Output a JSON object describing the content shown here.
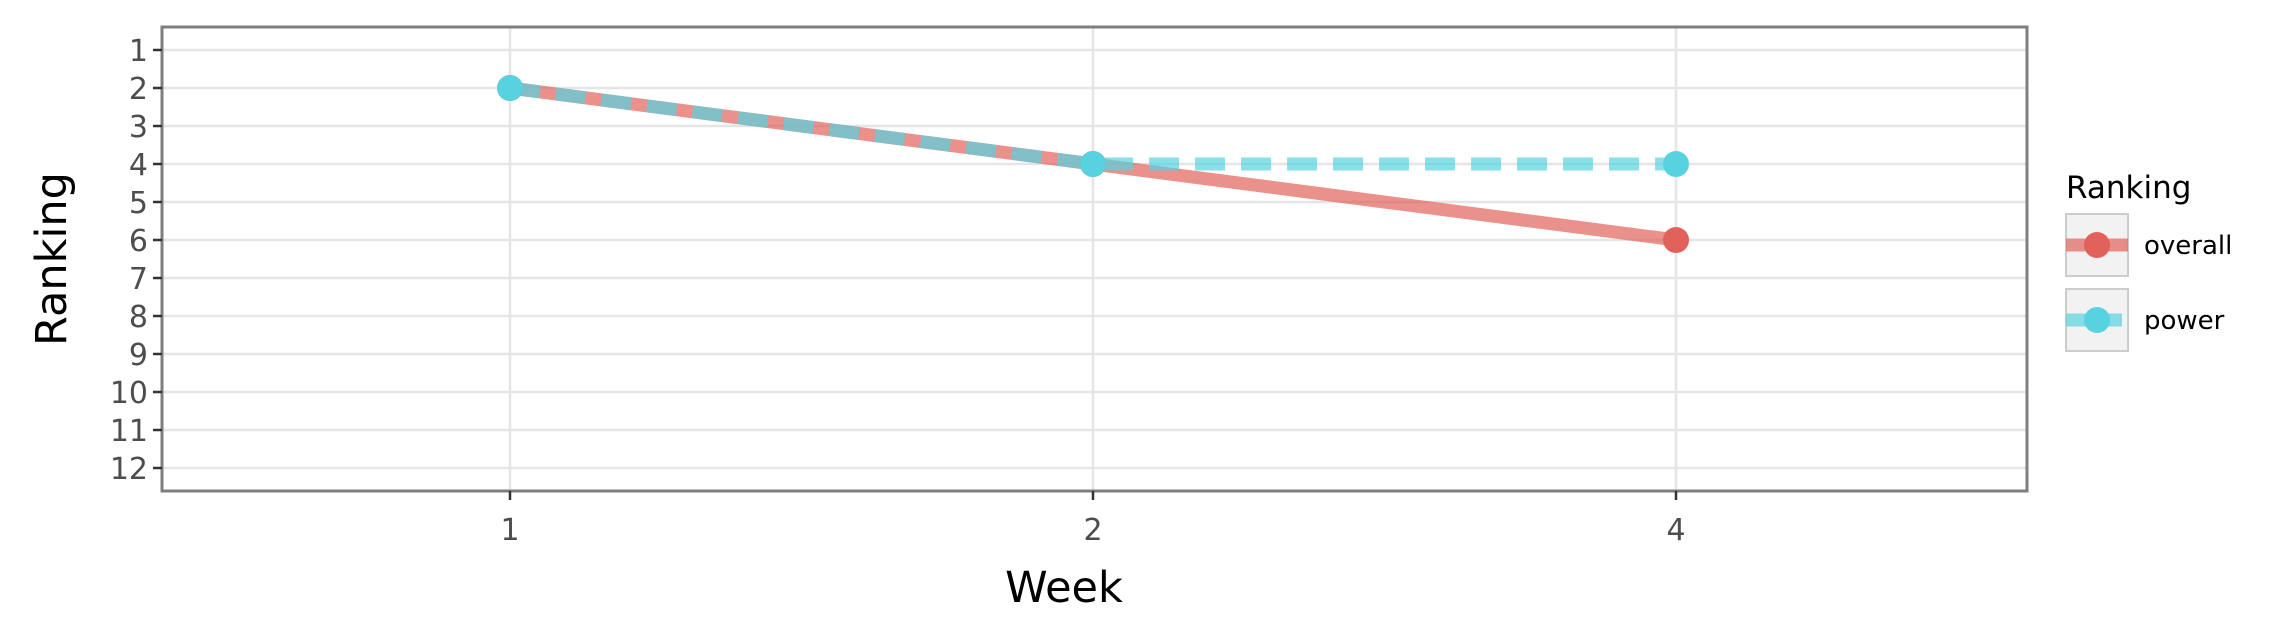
{
  "chart_data": {
    "type": "line",
    "title": "",
    "xlabel": "Week",
    "ylabel": "Ranking",
    "categories": [
      "1",
      "2",
      "4"
    ],
    "y_ticks": [
      "1",
      "2",
      "3",
      "4",
      "5",
      "6",
      "7",
      "8",
      "9",
      "10",
      "11",
      "12"
    ],
    "ylim": [
      1,
      12
    ],
    "y_reversed": true,
    "grid": true,
    "legend": {
      "title": "Ranking",
      "position": "right"
    },
    "series": [
      {
        "name": "overall",
        "values": [
          2,
          4,
          6
        ],
        "color": "#e2625b",
        "style": "solid"
      },
      {
        "name": "power",
        "values": [
          2,
          4,
          4
        ],
        "color": "#56d3df",
        "style": "dashed"
      }
    ]
  }
}
